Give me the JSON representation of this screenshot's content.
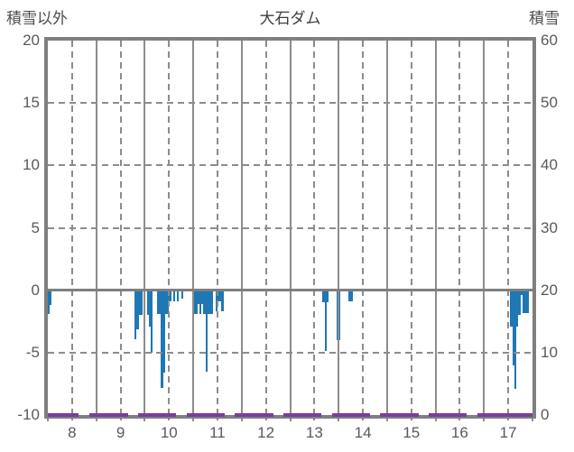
{
  "header": {
    "left_axis_title": "積雪以外",
    "chart_title": "大石ダム",
    "right_axis_title": "積雪"
  },
  "colors": {
    "frame": "#7f7f7f",
    "grid": "#8c8c8c",
    "text": "#595959",
    "title_text": "#404040",
    "bar": "#1f77b4",
    "snow_line": "#7d3c9e"
  },
  "chart_data": {
    "type": "bar",
    "title": "大石ダム",
    "left_axis": {
      "label": "積雪以外",
      "min": -10,
      "max": 20,
      "ticks": [
        20,
        15,
        10,
        5,
        0,
        -5,
        -10
      ]
    },
    "right_axis": {
      "label": "積雪",
      "min": 0,
      "max": 60,
      "ticks": [
        60,
        50,
        40,
        30,
        20,
        10,
        0
      ]
    },
    "x_axis": {
      "labels": [
        "8",
        "9",
        "10",
        "11",
        "12",
        "13",
        "14",
        "15",
        "16",
        "17"
      ],
      "day_start": 8,
      "day_end": 18,
      "solid_grid_at_day_boundaries": true,
      "dashed_grid_at_noon": true
    },
    "grid": {
      "horizontal_dashed_at": [
        15,
        10,
        5,
        -5
      ],
      "zero_line_solid": true
    },
    "bar_series": {
      "name": "積雪以外",
      "color": "#1f77b4",
      "bar_width_hours": 1,
      "points": [
        {
          "day": 8,
          "hour": 0,
          "value": -1.9
        },
        {
          "day": 8,
          "hour": 1,
          "value": -1.2
        },
        {
          "day": 9,
          "hour": 19,
          "value": -3.9
        },
        {
          "day": 9,
          "hour": 20,
          "value": -3.1
        },
        {
          "day": 9,
          "hour": 21,
          "value": -2.0
        },
        {
          "day": 9,
          "hour": 22,
          "value": -2.0
        },
        {
          "day": 10,
          "hour": 1,
          "value": -2.0
        },
        {
          "day": 10,
          "hour": 2,
          "value": -2.9
        },
        {
          "day": 10,
          "hour": 3,
          "value": -5.0
        },
        {
          "day": 10,
          "hour": 6,
          "value": -1.9
        },
        {
          "day": 10,
          "hour": 7,
          "value": -1.9
        },
        {
          "day": 10,
          "hour": 8,
          "value": -7.8
        },
        {
          "day": 10,
          "hour": 9,
          "value": -6.6
        },
        {
          "day": 10,
          "hour": 10,
          "value": -1.9
        },
        {
          "day": 10,
          "hour": 11,
          "value": -1.9
        },
        {
          "day": 10,
          "hour": 12,
          "value": -0.9
        },
        {
          "day": 10,
          "hour": 14,
          "value": -0.9
        },
        {
          "day": 10,
          "hour": 16,
          "value": -0.9
        },
        {
          "day": 10,
          "hour": 18,
          "value": -0.7
        },
        {
          "day": 11,
          "hour": 0,
          "value": -1.9
        },
        {
          "day": 11,
          "hour": 1,
          "value": -1.9
        },
        {
          "day": 11,
          "hour": 2,
          "value": -1.1
        },
        {
          "day": 11,
          "hour": 3,
          "value": -1.9
        },
        {
          "day": 11,
          "hour": 4,
          "value": -1.1
        },
        {
          "day": 11,
          "hour": 5,
          "value": -1.9
        },
        {
          "day": 11,
          "hour": 6,
          "value": -6.5
        },
        {
          "day": 11,
          "hour": 7,
          "value": -1.9
        },
        {
          "day": 11,
          "hour": 8,
          "value": -1.9
        },
        {
          "day": 11,
          "hour": 9,
          "value": -1.9
        },
        {
          "day": 11,
          "hour": 11,
          "value": -1.7
        },
        {
          "day": 11,
          "hour": 12,
          "value": -0.9
        },
        {
          "day": 11,
          "hour": 13,
          "value": -0.9
        },
        {
          "day": 11,
          "hour": 14,
          "value": -1.7
        },
        {
          "day": 13,
          "hour": 16,
          "value": -1.0
        },
        {
          "day": 13,
          "hour": 17,
          "value": -4.9
        },
        {
          "day": 13,
          "hour": 18,
          "value": -1.0
        },
        {
          "day": 13,
          "hour": 23,
          "value": -4.0
        },
        {
          "day": 14,
          "hour": 0,
          "value": -4.0
        },
        {
          "day": 14,
          "hour": 5,
          "value": -0.9
        },
        {
          "day": 14,
          "hour": 6,
          "value": -0.9
        },
        {
          "day": 17,
          "hour": 13,
          "value": -2.9
        },
        {
          "day": 17,
          "hour": 14,
          "value": -6.0
        },
        {
          "day": 17,
          "hour": 15,
          "value": -7.9
        },
        {
          "day": 17,
          "hour": 16,
          "value": -2.9
        },
        {
          "day": 17,
          "hour": 17,
          "value": -2.0
        },
        {
          "day": 17,
          "hour": 18,
          "value": -0.4
        },
        {
          "day": 17,
          "hour": 19,
          "value": -1.8
        },
        {
          "day": 17,
          "hour": 20,
          "value": -1.8
        },
        {
          "day": 17,
          "hour": 21,
          "value": -1.8
        }
      ]
    },
    "line_series": {
      "name": "積雪",
      "axis": "right",
      "value": 0,
      "color": "#7d3c9e",
      "segments_days": [
        [
          8.0,
          8.64
        ],
        [
          8.85,
          9.65
        ],
        [
          9.86,
          10.65
        ],
        [
          10.86,
          11.65
        ],
        [
          11.86,
          12.65
        ],
        [
          12.86,
          13.65
        ],
        [
          13.86,
          14.65
        ],
        [
          14.86,
          15.65
        ],
        [
          15.86,
          16.65
        ],
        [
          16.86,
          18.0
        ]
      ]
    }
  }
}
